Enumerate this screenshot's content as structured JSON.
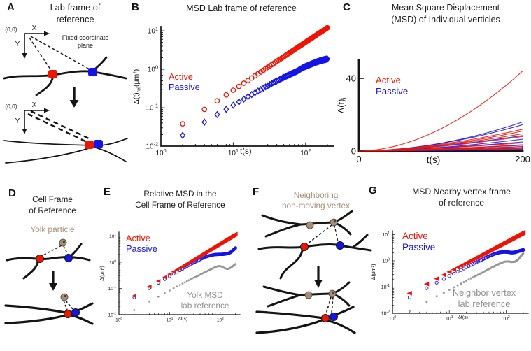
{
  "colors": {
    "active": "#ee1505",
    "passive": "#1414e6",
    "reference": "#979797",
    "annotation": "#a68f78",
    "ink": "#141414"
  },
  "panels": {
    "A": {
      "label": "A",
      "title_line1": "Lab frame of",
      "title_line2": "reference",
      "origin": "(0,0)",
      "axis_x": "X",
      "axis_y": "Y",
      "note_line1": "Fixed coordinate",
      "note_line2": "plane"
    },
    "B": {
      "label": "B",
      "title": "MSD Lab frame of reference",
      "legend_active": "Active",
      "legend_passive": "Passive",
      "ylabel_main": "Δ(t)",
      "ylabel_sub": "rel",
      "ylabel_units": "(μm²)",
      "xlabel": "t(s)"
    },
    "C": {
      "label": "C",
      "title_line1": "Mean Square Displacement",
      "title_line2": "(MSD) of Individual verticies",
      "legend_active": "Active",
      "legend_passive": "Passive",
      "ylabel_main": "Δ(t)",
      "ylabel_sub": "i",
      "xlabel": "t(s)"
    },
    "D": {
      "label": "D",
      "title_line1": "Cell Frame",
      "title_line2": "of Reference",
      "annotation": "Yolk particle"
    },
    "E": {
      "label": "E",
      "title_line1": "Relative MSD in the",
      "title_line2": "Cell Frame of Reference",
      "legend_active": "Active",
      "legend_passive": "Passive",
      "ref_line1": "Yolk MSD",
      "ref_line2": "lab reference",
      "ylabel": "Δ(μm²)",
      "xlabel": "δt(s)"
    },
    "F": {
      "label": "F",
      "title_line1": "Neighboring",
      "title_line2": "non-moving vertex"
    },
    "G": {
      "label": "G",
      "title_line1": "MSD Nearby vertex frame",
      "title_line2": "of reference",
      "legend_active": "Active",
      "legend_passive": "Passive",
      "ref_line1": "Neighbor vertex",
      "ref_line2": "lab reference",
      "ylabel": "Δ(μm²)",
      "xlabel": "δt(s)"
    }
  },
  "chart_data": [
    {
      "id": "B",
      "type": "scatter",
      "x_scale": "log",
      "y_scale": "log",
      "title": "MSD Lab frame of reference",
      "xlabel": "t(s)",
      "ylabel": "Δ(t)rel(μm²)",
      "x_range": [
        1,
        245
      ],
      "y_range": [
        0.01,
        12.9
      ],
      "x_ticks": [
        {
          "v": 1,
          "exp": "0"
        },
        {
          "v": 10,
          "exp": "1"
        },
        {
          "v": 100,
          "exp": "2"
        }
      ],
      "y_ticks": [
        {
          "v": 0.01,
          "exp": "-2"
        },
        {
          "v": 0.1,
          "exp": "-1"
        },
        {
          "v": 1,
          "exp": "0"
        },
        {
          "v": 10,
          "exp": "1"
        }
      ],
      "box": {
        "l": 45,
        "t": 38,
        "r": 292,
        "b": 209
      },
      "axis_width": 1.7,
      "tick_font": 10,
      "series": [
        {
          "name": "Active",
          "marker": "circle-open",
          "color": "active",
          "size": 3.2,
          "dense": true,
          "dt": 2,
          "x": [
            2,
            2.4,
            2.9,
            3.6,
            4.3,
            5.2,
            6.3,
            7.7,
            9.3,
            11.2,
            13.6,
            16.5,
            20,
            24,
            29,
            36,
            43,
            52,
            63,
            77,
            93,
            108,
            124,
            142,
            162,
            181,
            200
          ],
          "y": [
            0.038,
            0.048,
            0.061,
            0.079,
            0.099,
            0.126,
            0.16,
            0.205,
            0.26,
            0.328,
            0.418,
            0.532,
            0.677,
            0.85,
            1.08,
            1.41,
            1.76,
            2.23,
            2.84,
            3.65,
            4.62,
            5.57,
            6.62,
            7.84,
            9.25,
            10.6,
            12.0
          ]
        },
        {
          "name": "Passive",
          "marker": "diamond-open",
          "color": "passive",
          "size": 3.2,
          "dense": true,
          "dt": 2,
          "x": [
            2,
            2.4,
            2.9,
            3.6,
            4.3,
            5.2,
            6.3,
            7.7,
            9.3,
            11.2,
            13.6,
            16.5,
            20,
            24,
            29,
            36,
            43,
            52,
            63,
            77,
            93,
            108,
            124,
            142,
            162,
            181,
            200
          ],
          "y": [
            0.019,
            0.024,
            0.029,
            0.037,
            0.046,
            0.056,
            0.07,
            0.087,
            0.107,
            0.131,
            0.162,
            0.2,
            0.245,
            0.297,
            0.36,
            0.449,
            0.534,
            0.637,
            0.756,
            0.9,
            1.12,
            1.26,
            1.4,
            1.55,
            1.68,
            1.78,
            1.85
          ]
        }
      ]
    },
    {
      "id": "C",
      "type": "line",
      "x_scale": "linear",
      "y_scale": "linear",
      "title": "Mean Square Displacement (MSD) of Individual verticies",
      "xlabel": "t(s)",
      "ylabel": "Δ(t)i",
      "x_range": [
        0,
        200
      ],
      "y_range": [
        0,
        50
      ],
      "x_ticks": [
        {
          "v": 0,
          "label": "0"
        },
        {
          "v": 200,
          "label": "200"
        }
      ],
      "y_ticks": [
        {
          "v": 0,
          "label": "0"
        },
        {
          "v": 40,
          "label": "40"
        }
      ],
      "box": {
        "l": 33,
        "t": 86,
        "r": 267,
        "b": 216
      },
      "axis_width": 2.8,
      "tick_font": 13,
      "series": [
        {
          "name": "Passive",
          "color": "passive",
          "line_width": 1.1,
          "curves": [
            {
              "final": 16,
              "power": 1.9
            },
            {
              "final": 14.5,
              "power": 1.8
            },
            {
              "final": 8.5,
              "power": 1.6
            },
            {
              "final": 6.5,
              "power": 1.7
            },
            {
              "final": 5,
              "power": 1.5
            },
            {
              "final": 3.2,
              "power": 1.45
            },
            {
              "final": 2.4,
              "power": 1.5
            },
            {
              "final": 1.6,
              "power": 1.35
            },
            {
              "final": 1.0,
              "power": 1.25
            },
            {
              "final": 0.6,
              "power": 1.2
            }
          ]
        },
        {
          "name": "Active",
          "color": "active",
          "line_width": 1.1,
          "curves": [
            {
              "final": 44,
              "power": 1.85
            },
            {
              "final": 12,
              "power": 1.7
            },
            {
              "final": 11,
              "power": 1.75
            },
            {
              "final": 9.5,
              "power": 1.6
            },
            {
              "final": 8,
              "power": 1.65
            },
            {
              "final": 4.5,
              "power": 1.5
            },
            {
              "final": 3.5,
              "power": 1.55
            },
            {
              "final": 2.5,
              "power": 1.4
            },
            {
              "final": 1.8,
              "power": 1.45
            },
            {
              "final": 1.2,
              "power": 1.3
            }
          ]
        }
      ]
    },
    {
      "id": "E",
      "type": "scatter",
      "x_scale": "log",
      "y_scale": "log",
      "title": "Relative MSD in the Cell Frame of Reference",
      "xlabel": "δt(s)",
      "ylabel": "Δ(μm²)",
      "x_range": [
        1,
        245
      ],
      "y_range": [
        0.01,
        14
      ],
      "x_ticks": [
        {
          "v": 1,
          "exp": "0"
        },
        {
          "v": 10,
          "exp": "1"
        },
        {
          "v": 100,
          "exp": "2"
        }
      ],
      "y_ticks": [
        {
          "v": 0.01,
          "exp": "-2"
        },
        {
          "v": 0.1,
          "exp": "-1"
        },
        {
          "v": 1,
          "exp": "0"
        },
        {
          "v": 10,
          "exp": "1"
        }
      ],
      "box": {
        "l": 30,
        "t": 82,
        "r": 203,
        "b": 200
      },
      "axis_width": 1.2,
      "tick_font": 6.5,
      "series": [
        {
          "name": "Yolk MSD lab reference",
          "marker": "dot",
          "color": "reference",
          "size": 1.4,
          "dense": true,
          "dt": 2,
          "x": [
            2,
            2.4,
            2.9,
            3.6,
            4.3,
            5.2,
            6.3,
            7.7,
            9.3,
            11.2,
            13.6,
            16.5,
            20,
            24,
            29,
            36,
            43,
            52,
            63,
            77,
            93,
            108,
            124,
            142,
            162,
            181,
            200
          ],
          "y": [
            0.015,
            0.018,
            0.022,
            0.028,
            0.034,
            0.042,
            0.051,
            0.063,
            0.077,
            0.094,
            0.115,
            0.14,
            0.17,
            0.205,
            0.25,
            0.3,
            0.36,
            0.43,
            0.52,
            0.63,
            0.72,
            0.68,
            0.58,
            0.55,
            0.62,
            0.73,
            0.85
          ]
        },
        {
          "name": "Passive",
          "marker": "circle-open",
          "color": "passive",
          "size": 1.9,
          "dense": true,
          "dt": 2,
          "x": [
            2,
            2.4,
            2.9,
            3.6,
            4.3,
            5.2,
            6.3,
            7.7,
            9.3,
            11.2,
            13.6,
            16.5,
            20,
            24,
            29,
            36,
            43,
            52,
            63,
            77,
            93,
            108,
            124,
            142,
            162,
            181,
            200
          ],
          "y": [
            0.045,
            0.056,
            0.07,
            0.088,
            0.11,
            0.137,
            0.171,
            0.213,
            0.265,
            0.33,
            0.41,
            0.5,
            0.62,
            0.76,
            0.93,
            1.13,
            1.36,
            1.6,
            1.8,
            1.95,
            2.0,
            2.0,
            2.05,
            2.15,
            2.4,
            2.9,
            3.5
          ]
        },
        {
          "name": "Active",
          "marker": "tri-left",
          "color": "active",
          "size": 3.0,
          "dense": true,
          "dt": 2,
          "x": [
            2,
            2.4,
            2.9,
            3.6,
            4.3,
            5.2,
            6.3,
            7.7,
            9.3,
            11.2,
            13.6,
            16.5,
            20,
            24,
            29,
            36,
            43,
            52,
            63,
            77,
            93,
            108,
            124,
            142,
            162,
            181,
            200
          ],
          "y": [
            0.052,
            0.065,
            0.081,
            0.104,
            0.129,
            0.161,
            0.202,
            0.256,
            0.32,
            0.398,
            0.5,
            0.629,
            0.789,
            0.978,
            1.22,
            1.58,
            1.95,
            2.44,
            3.05,
            3.87,
            4.84,
            5.77,
            6.79,
            7.97,
            9.31,
            10.6,
            11.9
          ]
        }
      ]
    },
    {
      "id": "G",
      "type": "scatter",
      "x_scale": "log",
      "y_scale": "log",
      "title": "MSD Nearby vertex frame of reference",
      "xlabel": "δt(s)",
      "ylabel": "Δ(μm²)",
      "x_range": [
        1,
        245
      ],
      "y_range": [
        0.01,
        14
      ],
      "x_ticks": [
        {
          "v": 1,
          "exp": "0"
        },
        {
          "v": 10,
          "exp": "1"
        },
        {
          "v": 100,
          "exp": "2"
        }
      ],
      "y_ticks": [
        {
          "v": 0.01,
          "exp": "-2"
        },
        {
          "v": 0.1,
          "exp": "-1"
        },
        {
          "v": 1,
          "exp": "0"
        },
        {
          "v": 10,
          "exp": "1"
        }
      ],
      "box": {
        "l": 41,
        "t": 80,
        "r": 235,
        "b": 198
      },
      "axis_width": 1.3,
      "tick_font": 7,
      "series": [
        {
          "name": "Neighbor vertex lab reference",
          "marker": "dot",
          "color": "reference",
          "size": 1.5,
          "dense": true,
          "dt": 2,
          "x": [
            2,
            2.4,
            2.9,
            3.6,
            4.3,
            5.2,
            6.3,
            7.7,
            9.3,
            11.2,
            13.6,
            16.5,
            20,
            24,
            29,
            36,
            43,
            52,
            63,
            77,
            93,
            108,
            124,
            142,
            162,
            181,
            200
          ],
          "y": [
            0.012,
            0.015,
            0.019,
            0.024,
            0.03,
            0.037,
            0.047,
            0.058,
            0.072,
            0.09,
            0.112,
            0.139,
            0.172,
            0.214,
            0.265,
            0.33,
            0.41,
            0.51,
            0.63,
            0.78,
            0.92,
            0.95,
            0.9,
            0.92,
            1.1,
            1.5,
            1.9
          ]
        },
        {
          "name": "Passive",
          "marker": "circle-open",
          "color": "passive",
          "size": 2.1,
          "dense": true,
          "dt": 2,
          "x": [
            2,
            2.4,
            2.9,
            3.6,
            4.3,
            5.2,
            6.3,
            7.7,
            9.3,
            11.2,
            13.6,
            16.5,
            20,
            24,
            29,
            36,
            43,
            52,
            63,
            77,
            93,
            108,
            124,
            142,
            162,
            181,
            200
          ],
          "y": [
            0.04,
            0.05,
            0.063,
            0.079,
            0.099,
            0.124,
            0.155,
            0.193,
            0.24,
            0.3,
            0.37,
            0.46,
            0.57,
            0.7,
            0.86,
            1.05,
            1.28,
            1.55,
            1.85,
            2.1,
            2.2,
            2.15,
            2.05,
            2.1,
            2.3,
            2.45,
            2.6
          ]
        },
        {
          "name": "Active",
          "marker": "tri-left",
          "color": "active",
          "size": 3.4,
          "dense": true,
          "dt": 2,
          "x": [
            2,
            2.4,
            2.9,
            3.6,
            4.3,
            5.2,
            6.3,
            7.7,
            9.3,
            11.2,
            13.6,
            16.5,
            20,
            24,
            29,
            36,
            43,
            52,
            63,
            77,
            93,
            108,
            124,
            142,
            162,
            181,
            200
          ],
          "y": [
            0.058,
            0.072,
            0.089,
            0.115,
            0.141,
            0.176,
            0.22,
            0.278,
            0.346,
            0.428,
            0.537,
            0.672,
            0.84,
            1.04,
            1.29,
            1.66,
            2.04,
            2.54,
            3.18,
            4.01,
            4.99,
            5.94,
            6.97,
            8.16,
            9.5,
            10.8,
            12.1
          ]
        }
      ]
    }
  ]
}
